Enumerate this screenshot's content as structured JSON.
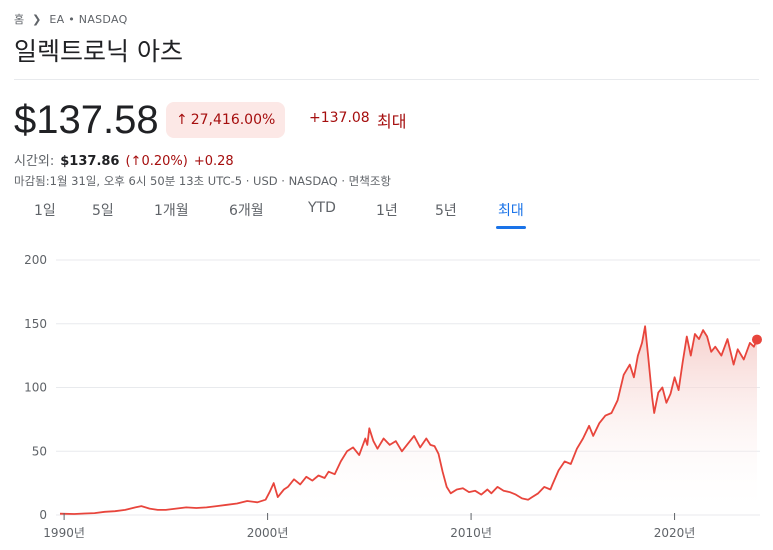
{
  "breadcrumb": {
    "home": "홈",
    "ticker": "EA • NASDAQ"
  },
  "company_name": "일렉트로닉 아츠",
  "price": "$137.58",
  "change_chip": {
    "arrow": "↑",
    "percent": "27,416.00%"
  },
  "change_abs": "+137.08",
  "range_label": "최대",
  "after_hours": {
    "label": "시간외:",
    "price": "$137.86",
    "percent": "(↑0.20%)",
    "change": "+0.28"
  },
  "meta": "마감됨:1월 31일, 오후 6시 50분 13초 UTC-5 · USD · NASDAQ · 면책조항",
  "tabs": [
    "1일",
    "5일",
    "1개월",
    "6개월",
    "YTD",
    "1년",
    "5년",
    "최대"
  ],
  "active_tab": "최대",
  "colors": {
    "line": "#e8453c",
    "fill_top": "#f4c7c3",
    "negative": "#a50e0e",
    "accent": "#1a73e8"
  },
  "chart_data": {
    "type": "area",
    "y_ticks": [
      "0",
      "50",
      "100",
      "150",
      "200"
    ],
    "ylim": [
      0,
      200
    ],
    "x_ticks": [
      {
        "label": "1990년",
        "x": 1990
      },
      {
        "label": "2000년",
        "x": 2000
      },
      {
        "label": "2010년",
        "x": 2010
      },
      {
        "label": "2020년",
        "x": 2020
      }
    ],
    "xlim": [
      1989.7,
      2024.1
    ],
    "grid": true,
    "series": [
      {
        "points": [
          [
            1989.8,
            1
          ],
          [
            1990.5,
            0.8
          ],
          [
            1991.0,
            1.2
          ],
          [
            1991.5,
            1.5
          ],
          [
            1992.0,
            2.5
          ],
          [
            1992.5,
            3
          ],
          [
            1993.0,
            4
          ],
          [
            1993.5,
            6
          ],
          [
            1993.8,
            7
          ],
          [
            1994.2,
            5
          ],
          [
            1994.6,
            4
          ],
          [
            1995.0,
            4
          ],
          [
            1995.5,
            5
          ],
          [
            1996.0,
            6
          ],
          [
            1996.5,
            5.5
          ],
          [
            1997.0,
            6
          ],
          [
            1997.5,
            7
          ],
          [
            1998.0,
            8
          ],
          [
            1998.5,
            9
          ],
          [
            1999.0,
            11
          ],
          [
            1999.5,
            10
          ],
          [
            1999.9,
            12
          ],
          [
            2000.1,
            18
          ],
          [
            2000.3,
            25
          ],
          [
            2000.5,
            14
          ],
          [
            2000.8,
            20
          ],
          [
            2001.0,
            22
          ],
          [
            2001.3,
            28
          ],
          [
            2001.6,
            24
          ],
          [
            2001.9,
            30
          ],
          [
            2002.2,
            27
          ],
          [
            2002.5,
            31
          ],
          [
            2002.8,
            29
          ],
          [
            2003.0,
            34
          ],
          [
            2003.3,
            32
          ],
          [
            2003.6,
            42
          ],
          [
            2003.9,
            50
          ],
          [
            2004.2,
            53
          ],
          [
            2004.5,
            47
          ],
          [
            2004.8,
            60
          ],
          [
            2004.9,
            55
          ],
          [
            2005.0,
            68
          ],
          [
            2005.2,
            58
          ],
          [
            2005.4,
            52
          ],
          [
            2005.7,
            60
          ],
          [
            2006.0,
            55
          ],
          [
            2006.3,
            58
          ],
          [
            2006.6,
            50
          ],
          [
            2006.9,
            56
          ],
          [
            2007.2,
            62
          ],
          [
            2007.5,
            53
          ],
          [
            2007.8,
            60
          ],
          [
            2008.0,
            55
          ],
          [
            2008.2,
            54
          ],
          [
            2008.4,
            48
          ],
          [
            2008.6,
            34
          ],
          [
            2008.8,
            22
          ],
          [
            2009.0,
            17
          ],
          [
            2009.3,
            20
          ],
          [
            2009.6,
            21
          ],
          [
            2009.9,
            18
          ],
          [
            2010.2,
            19
          ],
          [
            2010.5,
            16
          ],
          [
            2010.8,
            20
          ],
          [
            2011.0,
            17
          ],
          [
            2011.3,
            22
          ],
          [
            2011.6,
            19
          ],
          [
            2011.9,
            18
          ],
          [
            2012.2,
            16
          ],
          [
            2012.5,
            13
          ],
          [
            2012.8,
            12
          ],
          [
            2013.0,
            14
          ],
          [
            2013.3,
            17
          ],
          [
            2013.6,
            22
          ],
          [
            2013.9,
            20
          ],
          [
            2014.0,
            24
          ],
          [
            2014.3,
            35
          ],
          [
            2014.6,
            42
          ],
          [
            2014.9,
            40
          ],
          [
            2015.2,
            52
          ],
          [
            2015.5,
            60
          ],
          [
            2015.8,
            70
          ],
          [
            2016.0,
            62
          ],
          [
            2016.3,
            72
          ],
          [
            2016.6,
            78
          ],
          [
            2016.9,
            80
          ],
          [
            2017.2,
            90
          ],
          [
            2017.5,
            110
          ],
          [
            2017.8,
            118
          ],
          [
            2018.0,
            108
          ],
          [
            2018.2,
            125
          ],
          [
            2018.4,
            135
          ],
          [
            2018.55,
            148
          ],
          [
            2018.7,
            125
          ],
          [
            2018.9,
            92
          ],
          [
            2019.0,
            80
          ],
          [
            2019.2,
            96
          ],
          [
            2019.4,
            100
          ],
          [
            2019.6,
            88
          ],
          [
            2019.8,
            95
          ],
          [
            2020.0,
            108
          ],
          [
            2020.2,
            98
          ],
          [
            2020.4,
            120
          ],
          [
            2020.6,
            140
          ],
          [
            2020.8,
            125
          ],
          [
            2021.0,
            142
          ],
          [
            2021.2,
            138
          ],
          [
            2021.4,
            145
          ],
          [
            2021.6,
            140
          ],
          [
            2021.8,
            128
          ],
          [
            2022.0,
            132
          ],
          [
            2022.3,
            125
          ],
          [
            2022.6,
            138
          ],
          [
            2022.9,
            118
          ],
          [
            2023.1,
            130
          ],
          [
            2023.4,
            122
          ],
          [
            2023.7,
            135
          ],
          [
            2023.9,
            132
          ],
          [
            2024.05,
            137.58
          ]
        ]
      }
    ],
    "last_value": 137.58
  }
}
